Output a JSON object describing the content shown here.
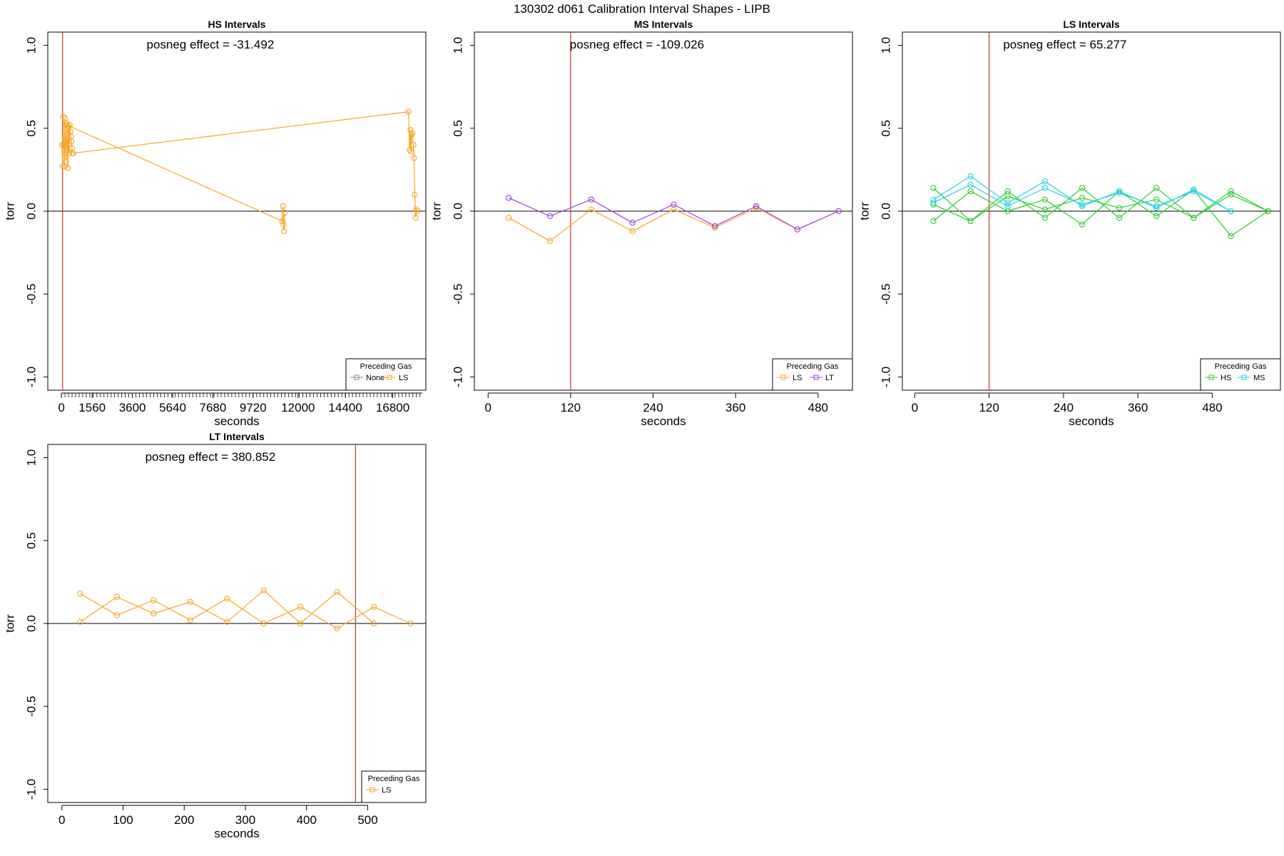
{
  "figure_title": "130302   d061   Calibration Interval Shapes - LIPB",
  "chart_data": [
    {
      "type": "line",
      "title": "HS Intervals",
      "xlabel": "seconds",
      "ylabel": "torr",
      "annotation": "posneg effect = -31.492",
      "xlim": [
        -690,
        18480
      ],
      "ylim": [
        -1.08,
        1.08
      ],
      "x_ticks": [
        0,
        1560,
        3600,
        5640,
        7680,
        9720,
        12000,
        14400,
        16800
      ],
      "x_tick_labels": [
        "0",
        "1560",
        "3600",
        "5640",
        "7680",
        "9720",
        "12000",
        "14400",
        "16800"
      ],
      "minor_ticks_to": 18300,
      "minor_tick_step": 180,
      "y_ticks": [
        -1.0,
        -0.5,
        0.0,
        0.5,
        1.0
      ],
      "y_tick_labels": [
        "-1.0",
        "-0.5",
        "0.0",
        "0.5",
        "1.0"
      ],
      "vline_x": 60,
      "hline_y": 0,
      "legend": {
        "title": "Preceding Gas",
        "position": "bottom-right",
        "entries": [
          {
            "label": "None",
            "color": "#888888"
          },
          {
            "label": "LS",
            "color": "#f5a623"
          }
        ]
      },
      "series": [
        {
          "color": "#f5a623",
          "x": [
            30,
            60,
            90,
            120,
            150,
            180,
            210,
            240,
            270,
            300,
            330,
            360,
            390,
            420,
            450,
            480,
            510,
            540,
            570
          ],
          "y": [
            0.4,
            0.27,
            0.57,
            0.4,
            0.27,
            0.56,
            0.4,
            0.3,
            0.53,
            0.42,
            0.26,
            0.51,
            0.35,
            0.52,
            0.48,
            0.45,
            0.42,
            0.38,
            0.35
          ]
        },
        {
          "color": "#f5a623",
          "x": [
            270,
            11200,
            11230,
            11260,
            11290,
            11320
          ],
          "y": [
            0.52,
            -0.06,
            0.03,
            -0.08,
            -0.12,
            -0.01
          ]
        },
        {
          "color": "#f5a623",
          "x": [
            600,
            17600,
            17660,
            17700,
            17730,
            17760,
            17800,
            17850,
            17880,
            17920,
            17960,
            18000,
            18050
          ],
          "y": [
            0.35,
            0.6,
            0.37,
            0.49,
            0.36,
            0.46,
            0.47,
            0.4,
            0.32,
            0.1,
            -0.04,
            0.01,
            0.0
          ]
        }
      ]
    },
    {
      "type": "line",
      "title": "MS Intervals",
      "xlabel": "seconds",
      "ylabel": "torr",
      "annotation": "posneg effect = -109.026",
      "xlim": [
        -20,
        530
      ],
      "ylim": [
        -1.08,
        1.08
      ],
      "x_ticks": [
        0,
        120,
        240,
        360,
        480
      ],
      "x_tick_labels": [
        "0",
        "120",
        "240",
        "360",
        "480"
      ],
      "y_ticks": [
        -1.0,
        -0.5,
        0.0,
        0.5,
        1.0
      ],
      "y_tick_labels": [
        "-1.0",
        "-0.5",
        "0.0",
        "0.5",
        "1.0"
      ],
      "vline_x": 120,
      "hline_y": 0,
      "legend": {
        "title": "Preceding Gas",
        "position": "bottom-right",
        "entries": [
          {
            "label": "LS",
            "color": "#f5a623"
          },
          {
            "label": "LT",
            "color": "#a040e0"
          }
        ]
      },
      "series": [
        {
          "color": "#f5a623",
          "x": [
            30,
            90,
            150,
            210,
            270,
            330,
            390,
            450,
            510
          ],
          "y": [
            -0.04,
            -0.18,
            0.01,
            -0.12,
            0.01,
            -0.1,
            0.02,
            -0.11,
            0.0
          ]
        },
        {
          "color": "#a040e0",
          "x": [
            30,
            90,
            150,
            210,
            270,
            330,
            390,
            450,
            510
          ],
          "y": [
            0.08,
            -0.03,
            0.07,
            -0.07,
            0.04,
            -0.09,
            0.03,
            -0.11,
            0.0
          ]
        }
      ]
    },
    {
      "type": "line",
      "title": "LS Intervals",
      "xlabel": "seconds",
      "ylabel": "torr",
      "annotation": "posneg effect = 65.277",
      "xlim": [
        -20,
        590
      ],
      "ylim": [
        -1.08,
        1.08
      ],
      "x_ticks": [
        0,
        120,
        240,
        360,
        480
      ],
      "x_tick_labels": [
        "0",
        "120",
        "240",
        "360",
        "480"
      ],
      "y_ticks": [
        -1.0,
        -0.5,
        0.0,
        0.5,
        1.0
      ],
      "y_tick_labels": [
        "-1.0",
        "-0.5",
        "0.0",
        "0.5",
        "1.0"
      ],
      "vline_x": 120,
      "hline_y": 0,
      "legend": {
        "title": "Preceding Gas",
        "position": "bottom-right",
        "entries": [
          {
            "label": "HS",
            "color": "#2ecc2e"
          },
          {
            "label": "MS",
            "color": "#22d3e8"
          }
        ]
      },
      "series": [
        {
          "color": "#2ecc2e",
          "x": [
            30,
            90,
            150,
            210,
            270,
            330,
            390,
            450,
            510,
            570
          ],
          "y": [
            0.14,
            -0.06,
            0.12,
            -0.04,
            0.14,
            -0.04,
            0.14,
            -0.04,
            0.12,
            0.0
          ]
        },
        {
          "color": "#2ecc2e",
          "x": [
            30,
            90,
            150,
            210,
            270,
            330,
            390,
            450,
            510,
            570
          ],
          "y": [
            -0.06,
            0.12,
            0.0,
            0.07,
            -0.08,
            0.12,
            -0.03,
            0.13,
            -0.15,
            0.0
          ]
        },
        {
          "color": "#2ecc2e",
          "x": [
            30,
            90,
            150,
            210,
            270,
            330,
            390,
            450,
            510,
            570
          ],
          "y": [
            0.04,
            -0.06,
            0.09,
            0.01,
            0.08,
            0.02,
            0.07,
            -0.04,
            0.1,
            0.0
          ]
        },
        {
          "color": "#22d3e8",
          "x": [
            30,
            90,
            150,
            210,
            270,
            330,
            390,
            450,
            510
          ],
          "y": [
            0.07,
            0.21,
            0.05,
            0.18,
            0.03,
            0.12,
            0.02,
            0.13,
            0.0
          ]
        },
        {
          "color": "#22d3e8",
          "x": [
            30,
            90,
            150,
            210,
            270,
            330,
            390,
            450,
            510
          ],
          "y": [
            0.05,
            0.16,
            0.03,
            0.14,
            0.04,
            0.11,
            0.03,
            0.12,
            0.0
          ]
        }
      ]
    },
    {
      "type": "line",
      "title": "LT Intervals",
      "xlabel": "seconds",
      "ylabel": "torr",
      "annotation": "posneg effect = 380.852",
      "xlim": [
        -23,
        595
      ],
      "ylim": [
        -1.08,
        1.08
      ],
      "x_ticks": [
        0,
        100,
        200,
        300,
        400,
        500
      ],
      "x_tick_labels": [
        "0",
        "100",
        "200",
        "300",
        "400",
        "500"
      ],
      "y_ticks": [
        -1.0,
        -0.5,
        0.0,
        0.5,
        1.0
      ],
      "y_tick_labels": [
        "-1.0",
        "-0.5",
        "0.0",
        "0.5",
        "1.0"
      ],
      "vline_x": 480,
      "hline_y": 0,
      "legend": {
        "title": "Preceding Gas",
        "position": "bottom-right",
        "entries": [
          {
            "label": "LS",
            "color": "#f5a623"
          }
        ]
      },
      "series": [
        {
          "color": "#f5a623",
          "x": [
            30,
            90,
            150,
            210,
            270,
            330,
            390,
            450,
            510,
            570
          ],
          "y": [
            0.18,
            0.05,
            0.14,
            0.02,
            0.15,
            0.0,
            0.1,
            -0.03,
            0.1,
            0.0
          ]
        },
        {
          "color": "#f5a623",
          "x": [
            30,
            90,
            150,
            210,
            270,
            330,
            390,
            450,
            510
          ],
          "y": [
            0.01,
            0.16,
            0.06,
            0.13,
            0.01,
            0.2,
            0.0,
            0.19,
            0.0
          ]
        }
      ]
    }
  ]
}
